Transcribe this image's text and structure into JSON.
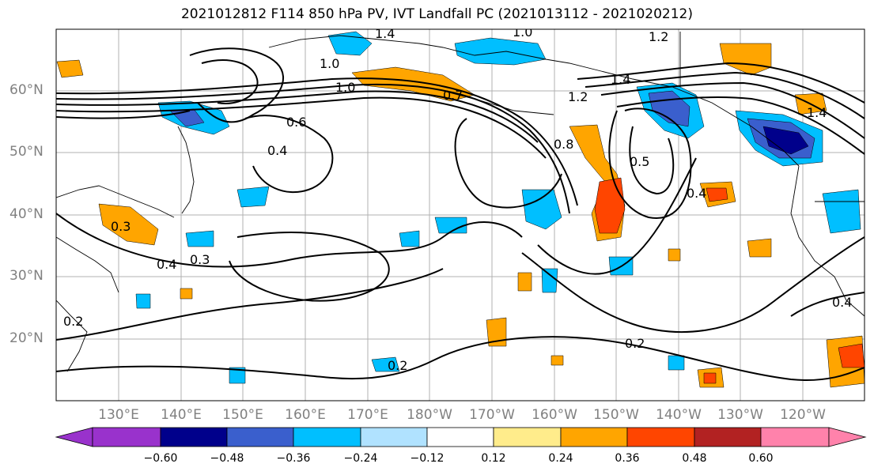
{
  "title": "2021012812 F114 850 hPa PV, IVT Landfall PC (2021013112 - 2021020212)",
  "lat_labels": [
    "60°N",
    "50°N",
    "40°N",
    "30°N",
    "20°N"
  ],
  "lon_labels": [
    "130°E",
    "140°E",
    "150°E",
    "160°E",
    "170°E",
    "180°W",
    "170°W",
    "160°W",
    "150°W",
    "140°W",
    "130°W",
    "120°W"
  ],
  "contour_labels": [
    "1.4",
    "1.0",
    "1.2",
    "1.0",
    "1.0",
    "0.7",
    "0.6",
    "0.4",
    "1.4",
    "1.2",
    "0.8",
    "0.5",
    "0.4",
    "1.4",
    "0.3",
    "0.4",
    "0.3",
    "0.2",
    "0.2",
    "0.2",
    "0.4"
  ],
  "colorbar": {
    "colors": [
      "#9932cc",
      "#00008b",
      "#3a5fcd",
      "#00bfff",
      "#b0e2ff",
      "#ffffff",
      "#ffec8b",
      "#ffa500",
      "#ff4500",
      "#b22222",
      "#ff82ab"
    ],
    "ticks": [
      "−0.60",
      "−0.48",
      "−0.36",
      "−0.24",
      "−0.12",
      "0.12",
      "0.24",
      "0.36",
      "0.48",
      "0.60"
    ]
  }
}
